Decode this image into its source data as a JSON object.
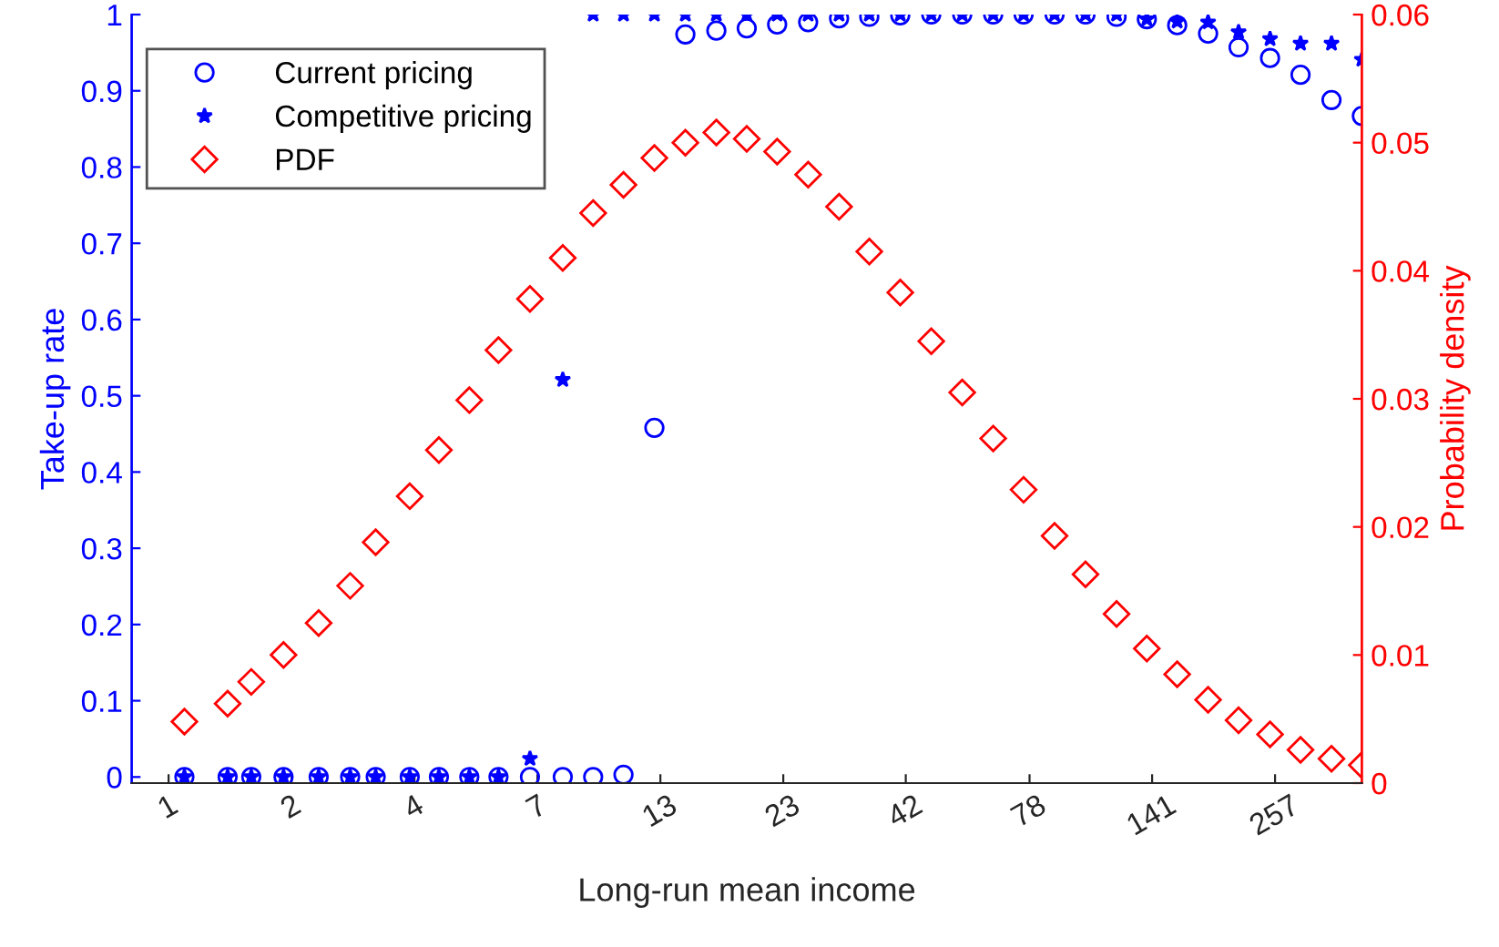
{
  "chart_data": {
    "type": "scatter",
    "xlabel": "Long-run mean income",
    "ylabel": "Take-up rate",
    "y2label": "Probability density",
    "log": "x",
    "grid": false,
    "legend": "top left",
    "x": [
      1.251,
      1.545,
      1.734,
      2.03,
      2.41,
      2.811,
      3.184,
      3.76,
      4.336,
      5.03,
      5.8,
      6.764,
      7.94,
      9.21,
      10.68,
      12.42,
      14.45,
      16.81,
      19.5,
      22.62,
      26.32,
      30.61,
      35.48,
      41.27,
      48.02,
      55.86,
      64.98,
      75.38,
      87.69,
      102.0,
      118.7,
      137.6,
      159.6,
      185.6,
      215.4,
      251.2,
      291.5,
      339.1,
      393.3
    ],
    "xlim": [
      0.967,
      393.3
    ],
    "xticks": [
      {
        "value": 1.158,
        "label": "1"
      },
      {
        "value": 2.111,
        "label": "2"
      },
      {
        "value": 3.848,
        "label": "4"
      },
      {
        "value": 7.015,
        "label": "7"
      },
      {
        "value": 12.79,
        "label": "13"
      },
      {
        "value": 23.31,
        "label": "23"
      },
      {
        "value": 42.4,
        "label": "42"
      },
      {
        "value": 77.6,
        "label": "78"
      },
      {
        "value": 141.2,
        "label": "141"
      },
      {
        "value": 257.4,
        "label": "257"
      }
    ],
    "ylim": [
      -0.008,
      1
    ],
    "yticks": [
      0,
      0.1,
      0.2,
      0.3,
      0.4,
      0.5,
      0.6,
      0.7,
      0.8,
      0.9,
      1
    ],
    "y2lim": [
      0,
      0.06
    ],
    "y2ticks": [
      0,
      0.01,
      0.02,
      0.03,
      0.04,
      0.05,
      0.06
    ],
    "series": [
      {
        "name": "Current pricing",
        "color": "#0000ff",
        "marker": "circle",
        "values": [
          0,
          0,
          0,
          0,
          0,
          0,
          0,
          0,
          0,
          0,
          0,
          0,
          0,
          0,
          0.003,
          0.458,
          0.974,
          0.979,
          0.982,
          0.987,
          0.99,
          0.995,
          0.997,
          0.999,
          1,
          1,
          1,
          1,
          1,
          1,
          0.997,
          0.994,
          0.986,
          0.975,
          0.957,
          0.943,
          0.921,
          0.888,
          0.867
        ]
      },
      {
        "name": "Competitive pricing",
        "color": "#0000ff",
        "marker": "star",
        "values": [
          0,
          0,
          0,
          0,
          0,
          0,
          0,
          0,
          0,
          0,
          0,
          0.024,
          0.521,
          1,
          1,
          1,
          1,
          1,
          1,
          1,
          1,
          1,
          1,
          1,
          1,
          1,
          1,
          1,
          1,
          1,
          1,
          0.994,
          0.991,
          0.99,
          0.977,
          0.968,
          0.962,
          0.962,
          0.941
        ]
      },
      {
        "name": "PDF",
        "color": "#ff0000",
        "marker": "diamond",
        "axis": "y2",
        "values": [
          0.0048,
          0.0062,
          0.0079,
          0.01,
          0.0125,
          0.0154,
          0.0188,
          0.0224,
          0.026,
          0.0299,
          0.0338,
          0.0378,
          0.041,
          0.0445,
          0.0467,
          0.0488,
          0.05,
          0.0508,
          0.0503,
          0.0493,
          0.0475,
          0.045,
          0.0415,
          0.0383,
          0.0345,
          0.0305,
          0.0269,
          0.0229,
          0.0193,
          0.0163,
          0.0132,
          0.0105,
          0.0085,
          0.0065,
          0.0049,
          0.0038,
          0.0026,
          0.0019,
          0.0014
        ]
      }
    ]
  }
}
